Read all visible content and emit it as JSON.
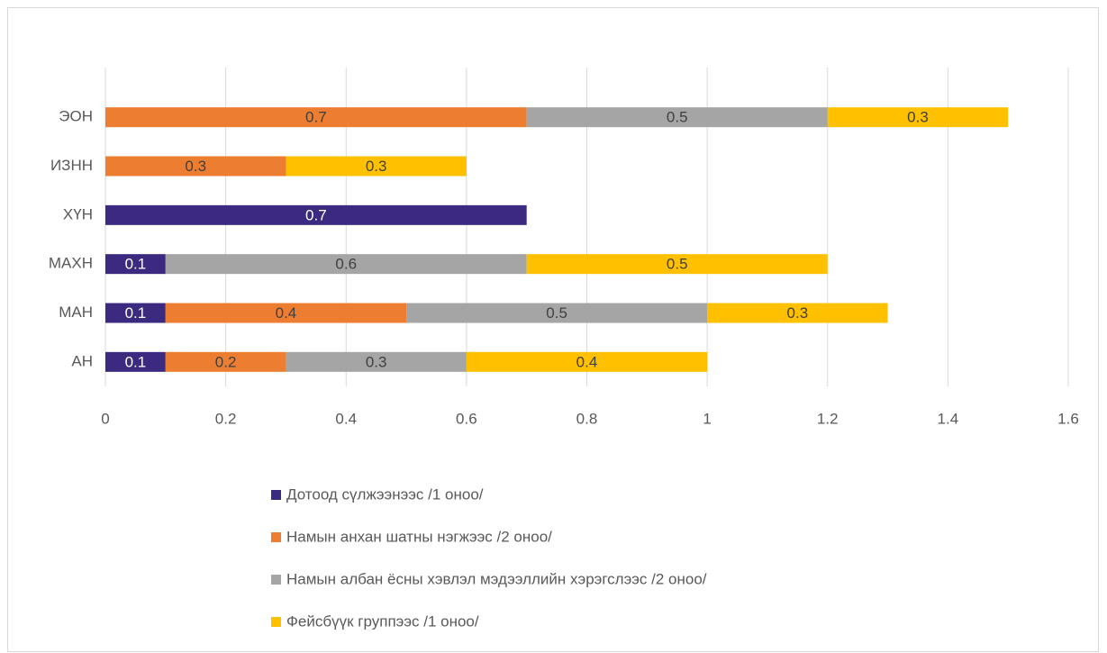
{
  "chart_data": {
    "type": "stacked_barh",
    "categories": [
      "АН",
      "МАН",
      "МАХН",
      "ХҮН",
      "ИЗНН",
      "ЭОН"
    ],
    "series": [
      {
        "name": "Дотоод сүлжээнээс /1 оноо/",
        "color": "#3b2a80",
        "values": [
          0.1,
          0.1,
          0.1,
          0.7,
          null,
          null
        ]
      },
      {
        "name": "Намын анхан шатны нэгжээс /2 оноо/",
        "color": "#ed7d31",
        "values": [
          0.2,
          0.4,
          null,
          null,
          0.3,
          0.7
        ]
      },
      {
        "name": "Намын албан ёсны хэвлэл мэдээллийн хэрэгслээс /2 оноо/",
        "color": "#a5a5a5",
        "values": [
          0.3,
          0.5,
          0.6,
          null,
          null,
          0.5
        ]
      },
      {
        "name": "Фейсбүүк группээс /1 оноо/",
        "color": "#ffc000",
        "values": [
          0.4,
          0.3,
          0.5,
          null,
          0.3,
          0.3
        ]
      }
    ],
    "xlim": [
      0,
      1.6
    ],
    "xticks": [
      0,
      0.2,
      0.4,
      0.6,
      0.8,
      1,
      1.2,
      1.4,
      1.6
    ],
    "grid": true,
    "legend": "bottom"
  }
}
